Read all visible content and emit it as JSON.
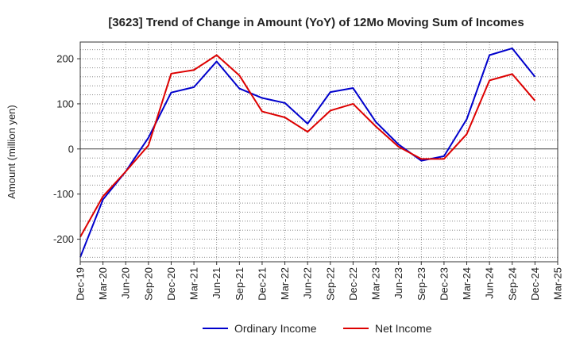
{
  "chart_data": {
    "type": "line",
    "title": "[3623]  Trend of Change in Amount (YoY) of 12Mo Moving Sum of Incomes",
    "xlabel": "",
    "ylabel": "Amount (million yen)",
    "ylim": [
      -250,
      237
    ],
    "yticks": [
      -200,
      -100,
      0,
      100,
      200
    ],
    "categories": [
      "Dec-19",
      "Mar-20",
      "Jun-20",
      "Sep-20",
      "Dec-20",
      "Mar-21",
      "Jun-21",
      "Sep-21",
      "Dec-21",
      "Mar-22",
      "Jun-22",
      "Sep-22",
      "Dec-22",
      "Mar-23",
      "Jun-23",
      "Sep-23",
      "Dec-23",
      "Mar-24",
      "Jun-24",
      "Sep-24",
      "Dec-24",
      "Mar-25"
    ],
    "series": [
      {
        "name": "Ordinary Income",
        "color": "#0000cc",
        "values": [
          -240,
          -112,
          -50,
          25,
          125,
          137,
          194,
          134,
          113,
          102,
          56,
          126,
          135,
          60,
          10,
          -26,
          -16,
          66,
          208,
          223,
          160,
          null
        ]
      },
      {
        "name": "Net Income",
        "color": "#dd0000",
        "values": [
          -195,
          -105,
          -50,
          8,
          167,
          175,
          208,
          163,
          83,
          70,
          38,
          85,
          100,
          50,
          5,
          -22,
          -22,
          33,
          152,
          166,
          107,
          null
        ]
      }
    ],
    "grid": true,
    "legend": "bottom"
  }
}
